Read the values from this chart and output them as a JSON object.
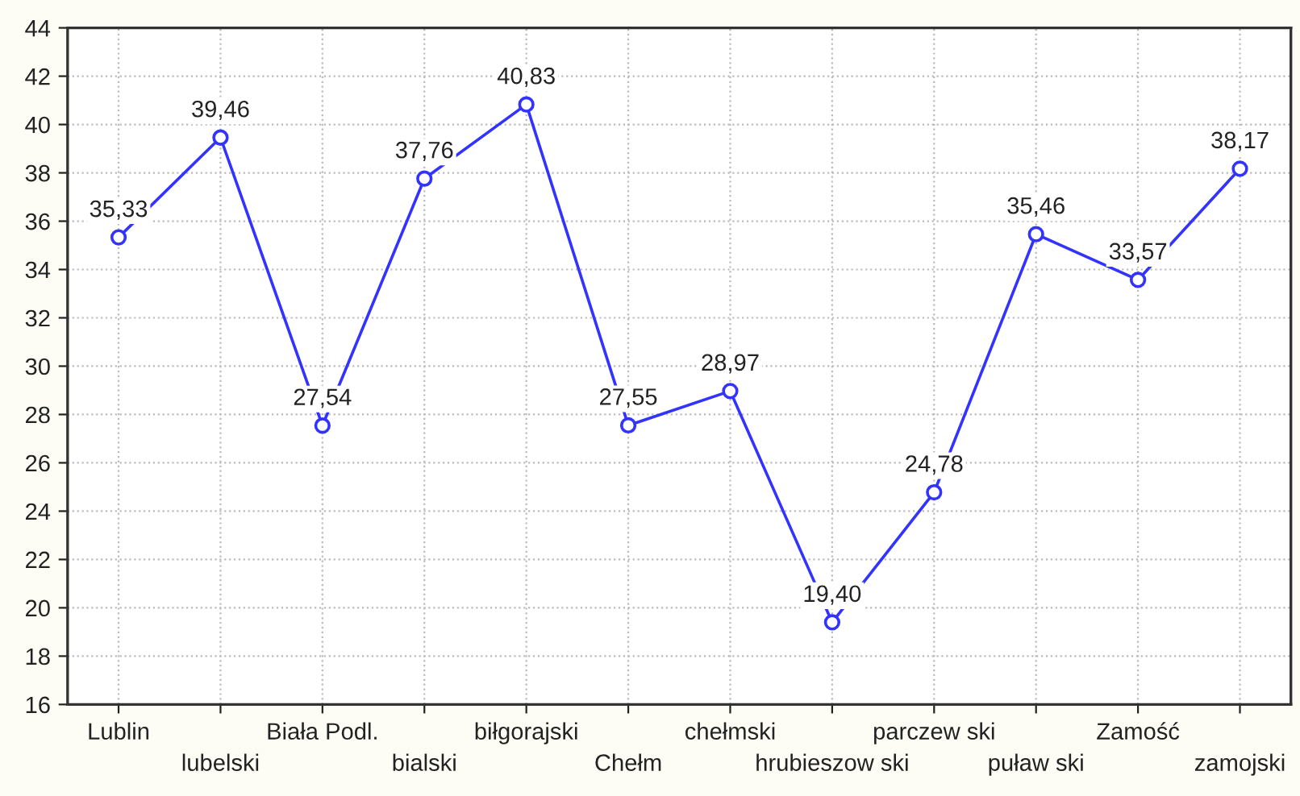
{
  "chart_data": {
    "type": "line",
    "categories": [
      "Lublin",
      "lubelski",
      "Biała Podl.",
      "bialski",
      "biłgorajski",
      "Chełm",
      "chełmski",
      "hrubieszow ski",
      "parczew ski",
      "puław ski",
      "Zamość",
      "zamojski"
    ],
    "values": [
      35.33,
      39.46,
      27.54,
      37.76,
      40.83,
      27.55,
      28.97,
      19.4,
      24.78,
      35.46,
      33.57,
      38.17
    ],
    "value_labels": [
      "35,33",
      "39,46",
      "27,54",
      "37,76",
      "40,83",
      "27,55",
      "28,97",
      "19,40",
      "24,78",
      "35,46",
      "33,57",
      "38,17"
    ],
    "color": "#3333ff",
    "marker": "circle",
    "line_style": "solid",
    "ylim": [
      16,
      44
    ],
    "yticks": [
      16,
      18,
      20,
      22,
      24,
      26,
      28,
      30,
      32,
      34,
      36,
      38,
      40,
      42,
      44
    ],
    "grid": true
  }
}
